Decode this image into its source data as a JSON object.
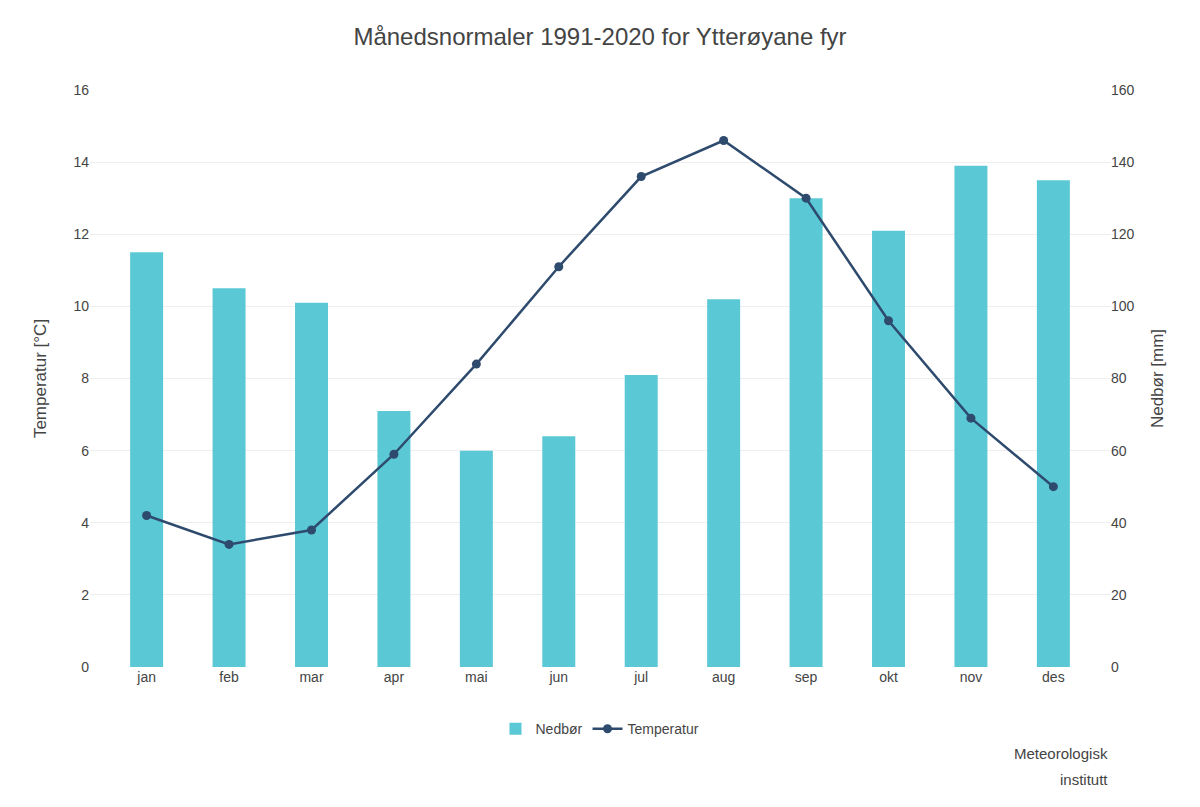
{
  "chart_data": {
    "type": "bar",
    "title": "Månedsnormaler 1991-2020 for Ytterøyane fyr",
    "categories": [
      "jan",
      "feb",
      "mar",
      "apr",
      "mai",
      "jun",
      "jul",
      "aug",
      "sep",
      "okt",
      "nov",
      "des"
    ],
    "series": [
      {
        "name": "Nedbør",
        "type": "bar",
        "axis": "y2",
        "color": "#5BC8D5",
        "values": [
          115,
          105,
          101,
          71,
          60,
          64,
          81,
          102,
          130,
          121,
          139,
          135
        ]
      },
      {
        "name": "Temperatur",
        "type": "line",
        "color": "#2E4B6E",
        "marker": "circle",
        "values": [
          4.2,
          3.4,
          3.8,
          5.9,
          8.4,
          11.1,
          13.6,
          14.6,
          13.0,
          9.6,
          6.9,
          5.0
        ]
      }
    ],
    "ylabel": "Temperatur [°C]",
    "y2label": "Nedbør [mm]",
    "ylim": [
      0,
      16
    ],
    "yticks": [
      0,
      2,
      4,
      6,
      8,
      10,
      12,
      14,
      16
    ],
    "y2lim": [
      0,
      160
    ],
    "y2ticks": [
      0,
      20,
      40,
      60,
      80,
      100,
      120,
      140,
      160
    ],
    "grid": true,
    "legend": "bottom",
    "annotations": [
      "Meteorologisk",
      "institutt"
    ]
  }
}
